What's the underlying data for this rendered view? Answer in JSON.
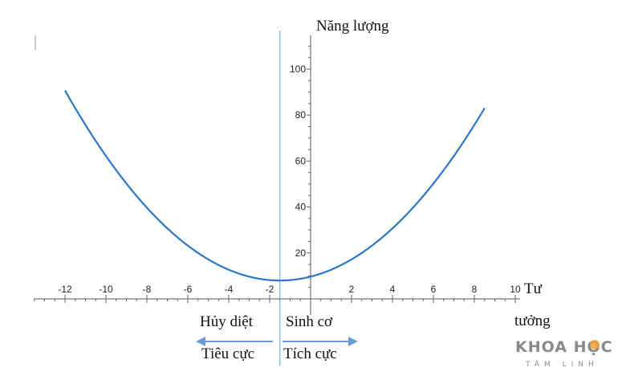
{
  "chart_data": {
    "type": "line",
    "title": "",
    "ylabel": "Năng lượng",
    "xlabel_line1": "Tư",
    "xlabel_line2": "tưởng",
    "x_ticks": [
      -12,
      -10,
      -8,
      -6,
      -4,
      -2,
      2,
      4,
      6,
      8,
      10
    ],
    "y_ticks": [
      20,
      40,
      60,
      80,
      100
    ],
    "xlim": [
      -13.6,
      10
    ],
    "ylim": [
      0,
      115
    ],
    "series": [
      {
        "function": "0.75*(x+1.5)^2+8",
        "vertex": [
          -1.5,
          8
        ],
        "x": [
          -12,
          -11,
          -10,
          -9,
          -8,
          -7,
          -6,
          -5,
          -4,
          -3,
          -2,
          -1.5,
          -1,
          0,
          1,
          2,
          3,
          4,
          5,
          6,
          7,
          8,
          8.5
        ],
        "y": [
          90.7,
          75.7,
          62.2,
          50.2,
          39.7,
          30.7,
          23.2,
          17.2,
          12.7,
          9.7,
          8.2,
          8.0,
          8.2,
          9.7,
          12.7,
          17.2,
          23.2,
          30.7,
          39.7,
          50.2,
          62.2,
          75.7,
          83.0
        ],
        "color": "#2e75c6"
      }
    ],
    "divider_x": -1.5,
    "annotations": {
      "left_top": "Hủy diệt",
      "right_top": "Sinh cơ",
      "left_bottom": "Tiêu cực",
      "right_bottom": "Tích cực"
    },
    "grid": false
  },
  "logo": {
    "main": "KHOA HỌC",
    "sub": "TÂM LINH"
  }
}
